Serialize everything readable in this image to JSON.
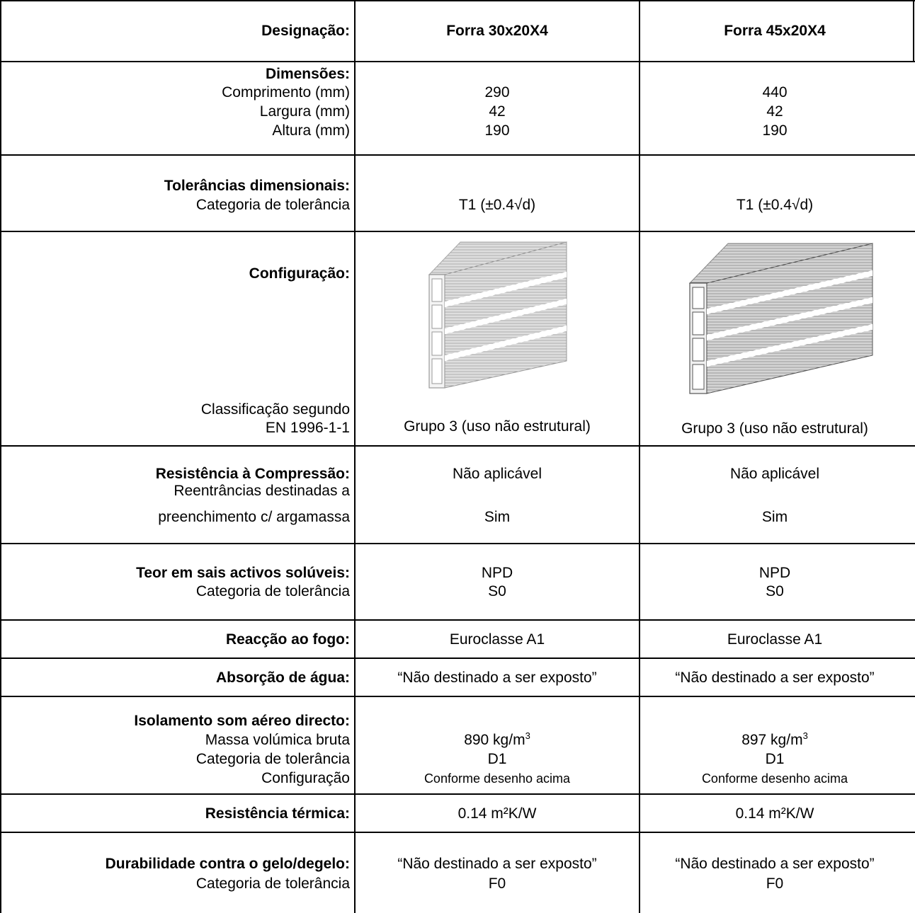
{
  "header": {
    "label": "Designação:",
    "col1": "Forra 30x20X4",
    "col2": "Forra 45x20X4"
  },
  "dimensions": {
    "title": "Dimensões:",
    "rows": [
      {
        "label": "Comprimento (mm)",
        "v1": "290",
        "v2": "440"
      },
      {
        "label": "Largura (mm)",
        "v1": "42",
        "v2": "42"
      },
      {
        "label": "Altura (mm)",
        "v1": "190",
        "v2": "190"
      }
    ]
  },
  "tolerances": {
    "title": "Tolerâncias dimensionais:",
    "label": "Categoria de tolerância",
    "v1": "T1 (±0.4√d)",
    "v2": "T1 (±0.4√d)"
  },
  "configuration": {
    "title": "Configuração:",
    "class_label_1": "Classificação segundo",
    "class_label_2": "EN 1996-1-1",
    "v1": "Grupo 3 (uso não estrutural)",
    "v2": "Grupo 3 (uso não estrutural)"
  },
  "compression": {
    "title": "Resistência à Compressão:",
    "v1": "Não aplicável",
    "v2": "Não aplicável",
    "label_1": "Reentrâncias destinadas a",
    "label_2": "preenchimento c/ argamassa",
    "w1": "Sim",
    "w2": "Sim"
  },
  "salts": {
    "title": "Teor em sais activos solúveis:",
    "v1": "NPD",
    "v2": "NPD",
    "label": "Categoria de tolerância",
    "w1": "S0",
    "w2": "S0"
  },
  "fire": {
    "title": "Reacção ao fogo:",
    "v1": "Euroclasse A1",
    "v2": "Euroclasse A1"
  },
  "water": {
    "title": "Absorção de água:",
    "v1": "“Não destinado a ser exposto”",
    "v2": "“Não destinado a ser exposto”"
  },
  "sound": {
    "title": "Isolamento som aéreo directo:",
    "label_mass": "Massa volúmica bruta",
    "mass1": "890 kg/m",
    "mass2": "897 kg/m",
    "sup": "3",
    "label_tol": "Categoria de tolerância",
    "tol1": "D1",
    "tol2": "D1",
    "label_conf": "Configuração",
    "conf1": "Conforme desenho acima",
    "conf2": "Conforme desenho acima"
  },
  "thermal": {
    "title": "Resistência térmica:",
    "v1": "0.14 m²K/W",
    "v2": "0.14 m²K/W"
  },
  "durability": {
    "title": "Durabilidade contra o gelo/degelo:",
    "v1": "“Não destinado a ser exposto”",
    "v2": "“Não destinado a ser exposto”",
    "label": "Categoria de tolerância",
    "w1": "F0",
    "w2": "F0"
  },
  "icons": {
    "block_small": "hollow-brick-drawing",
    "block_large": "hollow-brick-drawing"
  }
}
